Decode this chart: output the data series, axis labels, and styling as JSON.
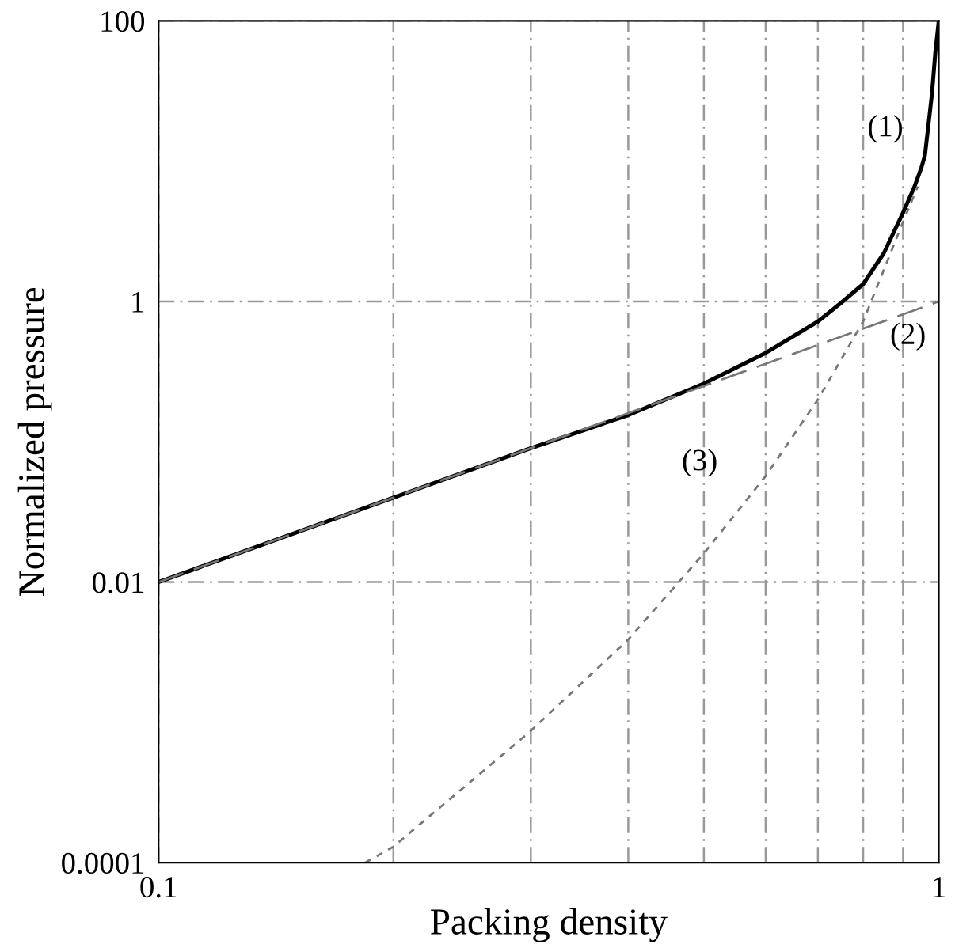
{
  "chart_data": {
    "type": "line",
    "xlabel": "Packing density",
    "ylabel": "Normalized pressure",
    "log": "xy",
    "grid": true,
    "legend": false,
    "marker": "none",
    "xlim": [
      0.1,
      1
    ],
    "ylim": [
      0.0001,
      100
    ],
    "xticks": [
      0.1,
      {
        "value": 0.2,
        "label": null
      },
      {
        "value": 0.3,
        "label": null
      },
      {
        "value": 0.4,
        "label": null
      },
      {
        "value": 0.5,
        "label": null
      },
      {
        "value": 0.6,
        "label": null
      },
      {
        "value": 0.7,
        "label": null
      },
      {
        "value": 0.8,
        "label": null
      },
      {
        "value": 0.9,
        "label": null
      },
      1
    ],
    "yticks": [
      0.0001,
      0.01,
      1,
      100
    ],
    "series": [
      {
        "name": "(1)",
        "color": "#000000",
        "line_style": "solid",
        "x": [
          0.1,
          0.2,
          0.3,
          0.4,
          0.5,
          0.6,
          0.7,
          0.75,
          0.8,
          0.85,
          0.9,
          0.93,
          0.95,
          0.96,
          0.98,
          0.99,
          1.0
        ],
        "values": [
          0.01,
          0.04,
          0.09,
          0.155,
          0.26,
          0.43,
          0.72,
          0.98,
          1.33,
          2.2,
          4.3,
          6.5,
          9,
          11,
          30,
          60,
          100
        ]
      },
      {
        "name": "(2)",
        "color": "#777777",
        "line_style": "dashed",
        "x": [
          0.1,
          0.5,
          1.0
        ],
        "values": [
          0.01,
          0.25,
          1
        ]
      },
      {
        "name": "(3)",
        "color": "#777777",
        "line_style": "dotted",
        "x": [
          0.184,
          0.2,
          0.3,
          0.4,
          0.5,
          0.6,
          0.7,
          0.8,
          0.9,
          0.94
        ],
        "values": [
          0.0001,
          0.00013,
          0.00087,
          0.0039,
          0.016,
          0.057,
          0.2,
          0.72,
          3.7,
          6.6
        ]
      }
    ]
  }
}
